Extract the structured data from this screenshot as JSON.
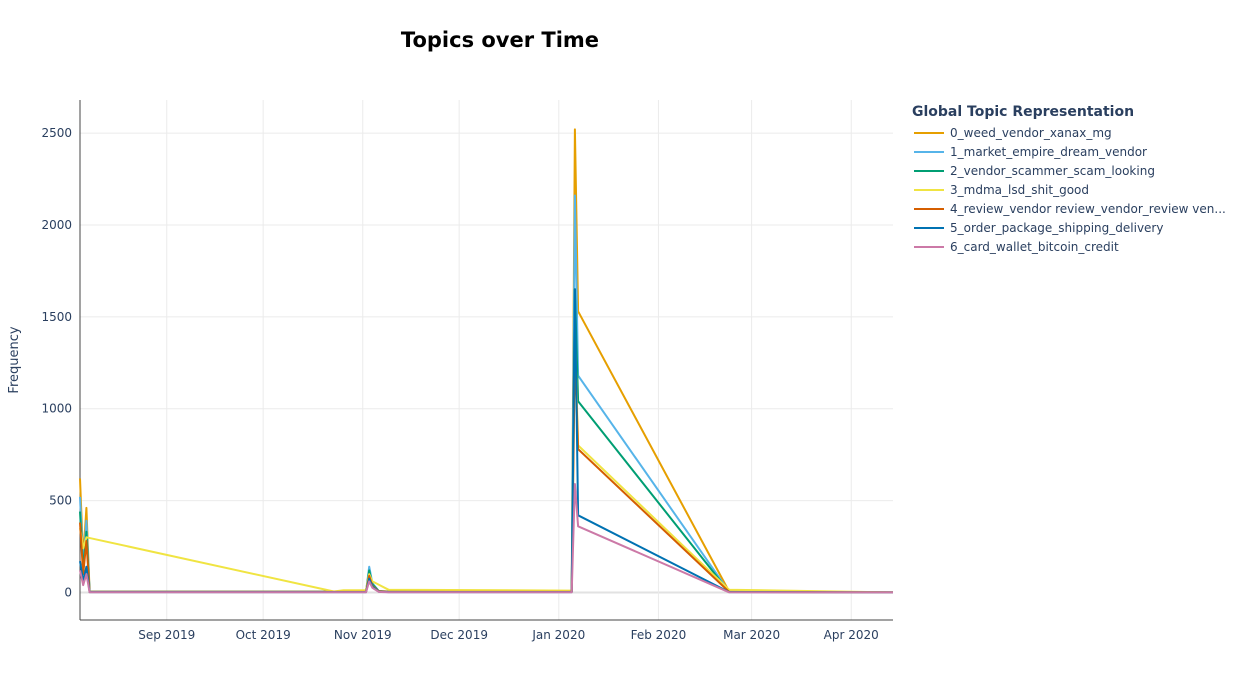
{
  "chart_data": {
    "type": "line",
    "title": "Topics over Time",
    "xlabel": "",
    "ylabel": "Frequency",
    "legend_title": "Global Topic Representation",
    "legend_position": "right",
    "grid": true,
    "xlim": [
      "2019-08-05",
      "2020-04-14"
    ],
    "ylim": [
      -150,
      2680
    ],
    "x_ticks": [
      {
        "date": "2019-09-01",
        "label": "Sep 2019"
      },
      {
        "date": "2019-10-01",
        "label": "Oct 2019"
      },
      {
        "date": "2019-11-01",
        "label": "Nov 2019"
      },
      {
        "date": "2019-12-01",
        "label": "Dec 2019"
      },
      {
        "date": "2020-01-01",
        "label": "Jan 2020"
      },
      {
        "date": "2020-02-01",
        "label": "Feb 2020"
      },
      {
        "date": "2020-03-01",
        "label": "Mar 2020"
      },
      {
        "date": "2020-04-01",
        "label": "Apr 2020"
      }
    ],
    "y_ticks": [
      0,
      500,
      1000,
      1500,
      2000,
      2500
    ],
    "series": [
      {
        "name": "0_weed_vendor_xanax_mg",
        "color": "#E69F00",
        "points": [
          [
            "2019-08-05",
            620
          ],
          [
            "2019-08-06",
            180
          ],
          [
            "2019-08-07",
            460
          ],
          [
            "2019-08-08",
            5
          ],
          [
            "2019-11-02",
            5
          ],
          [
            "2019-11-03",
            85
          ],
          [
            "2019-11-04",
            40
          ],
          [
            "2019-11-06",
            8
          ],
          [
            "2019-11-09",
            5
          ],
          [
            "2020-01-05",
            5
          ],
          [
            "2020-01-06",
            2520
          ],
          [
            "2020-01-07",
            1530
          ],
          [
            "2020-02-23",
            5
          ],
          [
            "2020-04-14",
            0
          ]
        ]
      },
      {
        "name": "1_market_empire_dream_vendor",
        "color": "#56B4E9",
        "points": [
          [
            "2019-08-05",
            520
          ],
          [
            "2019-08-06",
            150
          ],
          [
            "2019-08-07",
            390
          ],
          [
            "2019-08-08",
            4
          ],
          [
            "2019-11-02",
            4
          ],
          [
            "2019-11-03",
            140
          ],
          [
            "2019-11-04",
            50
          ],
          [
            "2019-11-06",
            8
          ],
          [
            "2019-11-09",
            4
          ],
          [
            "2020-01-05",
            4
          ],
          [
            "2020-01-06",
            2160
          ],
          [
            "2020-01-07",
            1180
          ],
          [
            "2020-02-23",
            4
          ],
          [
            "2020-04-14",
            0
          ]
        ]
      },
      {
        "name": "2_vendor_scammer_scam_looking",
        "color": "#009E73",
        "points": [
          [
            "2019-08-05",
            440
          ],
          [
            "2019-08-06",
            120
          ],
          [
            "2019-08-07",
            330
          ],
          [
            "2019-08-08",
            3
          ],
          [
            "2019-11-02",
            3
          ],
          [
            "2019-11-03",
            120
          ],
          [
            "2019-11-04",
            45
          ],
          [
            "2019-11-06",
            6
          ],
          [
            "2019-11-09",
            3
          ],
          [
            "2020-01-05",
            3
          ],
          [
            "2020-01-06",
            1650
          ],
          [
            "2020-01-07",
            1040
          ],
          [
            "2020-02-23",
            3
          ],
          [
            "2020-04-14",
            0
          ]
        ]
      },
      {
        "name": "3_mdma_lsd_shit_good",
        "color": "#F0E442",
        "points": [
          [
            "2019-08-05",
            350
          ],
          [
            "2019-08-06",
            240
          ],
          [
            "2019-08-07",
            300
          ],
          [
            "2019-10-23",
            5
          ],
          [
            "2019-10-26",
            12
          ],
          [
            "2019-11-02",
            12
          ],
          [
            "2019-11-03",
            100
          ],
          [
            "2019-11-04",
            60
          ],
          [
            "2019-11-09",
            15
          ],
          [
            "2020-01-05",
            10
          ],
          [
            "2020-01-06",
            1420
          ],
          [
            "2020-01-07",
            800
          ],
          [
            "2020-02-23",
            15
          ],
          [
            "2020-04-14",
            0
          ]
        ]
      },
      {
        "name": "4_review_vendor review_vendor_review ven...",
        "color": "#D55E00",
        "points": [
          [
            "2019-08-05",
            380
          ],
          [
            "2019-08-06",
            100
          ],
          [
            "2019-08-07",
            280
          ],
          [
            "2019-08-08",
            3
          ],
          [
            "2019-11-02",
            3
          ],
          [
            "2019-11-03",
            90
          ],
          [
            "2019-11-04",
            35
          ],
          [
            "2019-11-06",
            6
          ],
          [
            "2019-11-09",
            3
          ],
          [
            "2020-01-05",
            3
          ],
          [
            "2020-01-06",
            1320
          ],
          [
            "2020-01-07",
            780
          ],
          [
            "2020-02-23",
            3
          ],
          [
            "2020-04-14",
            0
          ]
        ]
      },
      {
        "name": "5_order_package_shipping_delivery",
        "color": "#0072B2",
        "points": [
          [
            "2019-08-05",
            170
          ],
          [
            "2019-08-06",
            60
          ],
          [
            "2019-08-07",
            140
          ],
          [
            "2019-08-08",
            2
          ],
          [
            "2019-11-02",
            2
          ],
          [
            "2019-11-03",
            75
          ],
          [
            "2019-11-04",
            30
          ],
          [
            "2019-11-06",
            4
          ],
          [
            "2019-11-09",
            2
          ],
          [
            "2020-01-05",
            2
          ],
          [
            "2020-01-06",
            1650
          ],
          [
            "2020-01-07",
            420
          ],
          [
            "2020-02-23",
            2
          ],
          [
            "2020-04-14",
            0
          ]
        ]
      },
      {
        "name": "6_card_wallet_bitcoin_credit",
        "color": "#CC79A7",
        "points": [
          [
            "2019-08-05",
            120
          ],
          [
            "2019-08-06",
            40
          ],
          [
            "2019-08-07",
            100
          ],
          [
            "2019-08-08",
            1
          ],
          [
            "2019-11-02",
            1
          ],
          [
            "2019-11-03",
            60
          ],
          [
            "2019-11-04",
            25
          ],
          [
            "2019-11-06",
            3
          ],
          [
            "2019-11-09",
            1
          ],
          [
            "2020-01-05",
            1
          ],
          [
            "2020-01-06",
            590
          ],
          [
            "2020-01-07",
            360
          ],
          [
            "2020-02-23",
            1
          ],
          [
            "2020-04-14",
            0
          ]
        ]
      }
    ]
  }
}
